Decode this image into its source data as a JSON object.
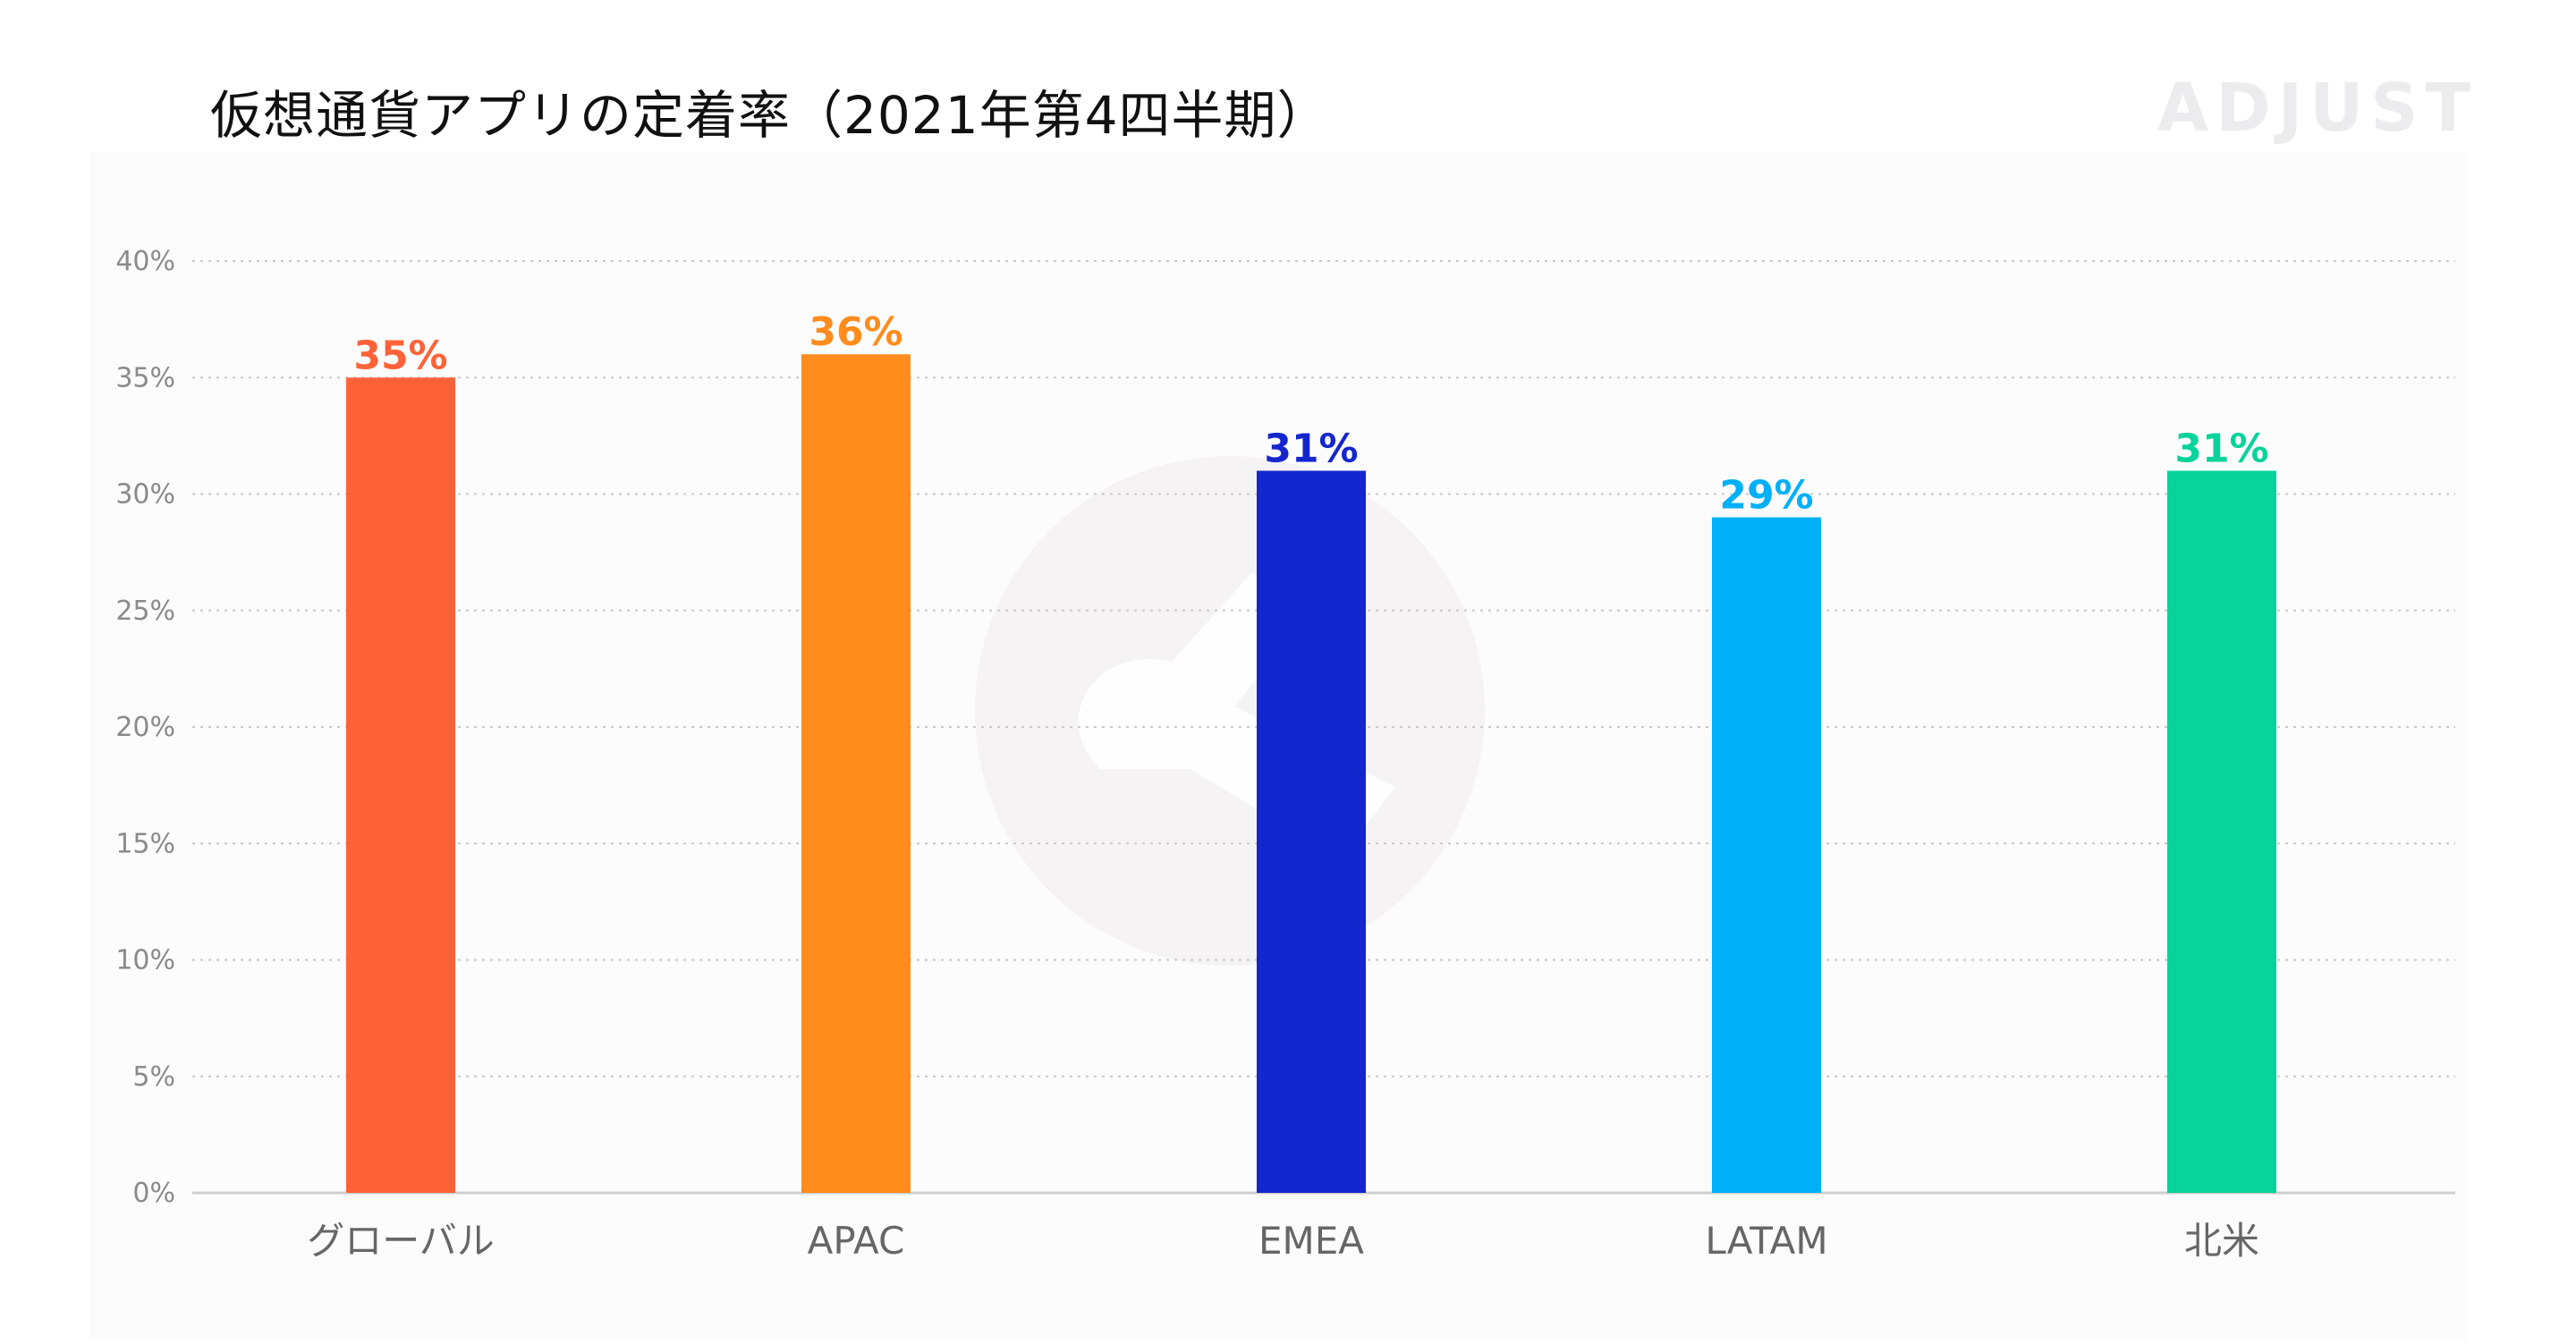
{
  "header": {
    "title": "仮想通貨アプリの定着率（2021年第4四半期）",
    "logo_text": "ADJUST"
  },
  "chart_data": {
    "type": "bar",
    "title": "仮想通貨アプリの定着率（2021年第4四半期）",
    "xlabel": "",
    "ylabel": "",
    "ylim": [
      0,
      40
    ],
    "y_ticks": [
      0,
      5,
      10,
      15,
      20,
      25,
      30,
      35,
      40
    ],
    "y_tick_format": "{v}%",
    "grid": true,
    "categories": [
      "グローバル",
      "APAC",
      "EMEA",
      "LATAM",
      "北米"
    ],
    "values": [
      35,
      36,
      31,
      29,
      31
    ],
    "value_labels": [
      "35%",
      "36%",
      "31%",
      "29%",
      "31%"
    ],
    "colors": [
      "#ff6238",
      "#ff8c1d",
      "#1426ce",
      "#00b0f8",
      "#08d39a"
    ]
  }
}
